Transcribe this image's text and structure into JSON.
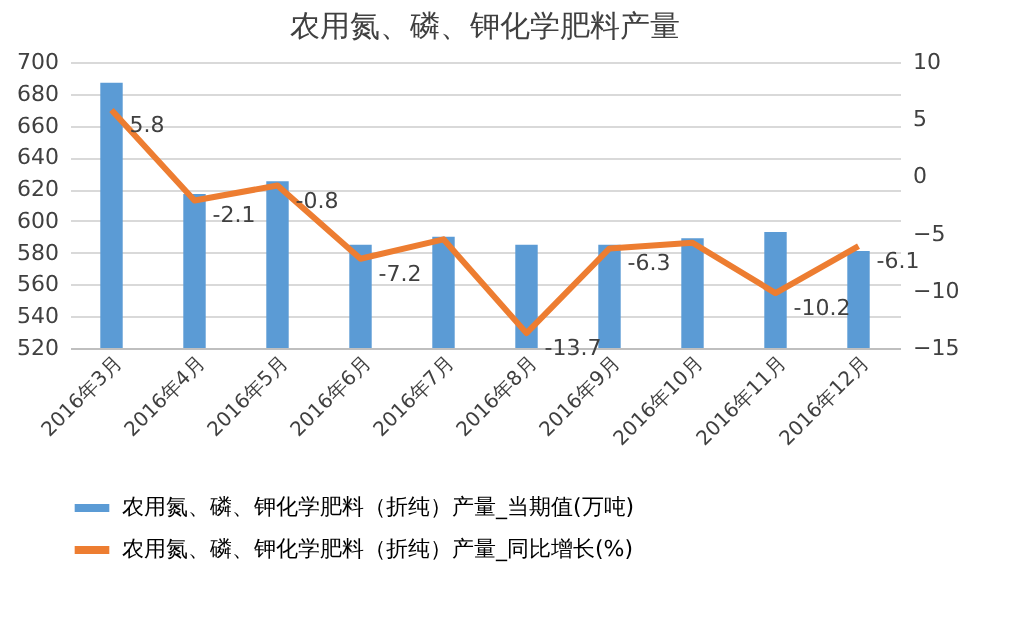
{
  "chart_data": {
    "type": "bar",
    "title": "农用氮、磷、钾化学肥料产量",
    "categories": [
      "2016年3月",
      "2016年4月",
      "2016年5月",
      "2016年6月",
      "2016年7月",
      "2016年8月",
      "2016年9月",
      "2016年10月",
      "2016年11月",
      "2016年12月"
    ],
    "series": [
      {
        "name": "农用氮、磷、钾化学肥料（折纯）产量_当期值(万吨)",
        "color": "#5b9bd5",
        "values": [
          687,
          617,
          625,
          585,
          590,
          585,
          585,
          589,
          593,
          581
        ]
      },
      {
        "name": "农用氮、磷、钾化学肥料（折纯）产量_同比增长(%)",
        "type": "line",
        "axis": "y2",
        "color": "#ed7d31",
        "values": [
          5.8,
          -2.1,
          -0.8,
          -7.2,
          -5.5,
          -13.7,
          -6.3,
          -5.8,
          -10.2,
          -6.1
        ],
        "value_labels": [
          "5.8",
          "-2.1",
          "-0.8",
          "-7.2",
          null,
          "-13.7",
          "-6.3",
          null,
          "-10.2",
          "-6.1"
        ]
      }
    ],
    "ylim": [
      520,
      700
    ],
    "yticks": [
      520,
      540,
      560,
      580,
      600,
      620,
      640,
      660,
      680,
      700
    ],
    "y2lim": [
      -15,
      10
    ],
    "y2ticks": [
      -15,
      -10,
      -5,
      0,
      5,
      10
    ],
    "grid": "y",
    "legend": "bottom"
  }
}
